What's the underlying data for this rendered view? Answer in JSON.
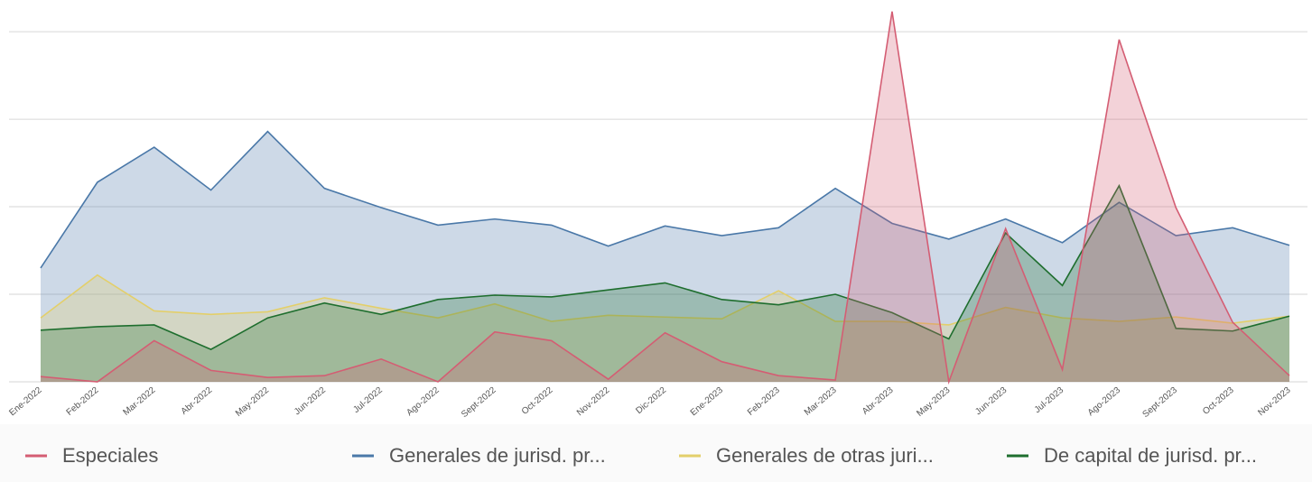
{
  "chart_data": {
    "type": "area",
    "categories": [
      "Ene-2022",
      "Feb-2022",
      "Mar-2022",
      "Abr-2022",
      "May-2022",
      "Jun-2022",
      "Jul-2022",
      "Ago-2022",
      "Sept-2022",
      "Oct-2022",
      "Nov-2022",
      "Dic-2022",
      "Ene-2023",
      "Feb-2023",
      "Mar-2023",
      "Abr-2023",
      "May-2023",
      "Jun-2023",
      "Jul-2023",
      "Ago-2023",
      "Sept-2023",
      "Oct-2023",
      "Nov-2023"
    ],
    "series": [
      {
        "name": "Especiales",
        "color": "#d45d73",
        "values": [
          0.06,
          0,
          0.47,
          0.13,
          0.05,
          0.07,
          0.26,
          0,
          0.57,
          0.47,
          0.03,
          0.56,
          0.23,
          0.07,
          0.02,
          4.23,
          0,
          1.75,
          0.14,
          3.91,
          1.99,
          0.68,
          0.07
        ]
      },
      {
        "name": "Generales de jurisd. pr...",
        "color": "#4a78a8",
        "values": [
          1.3,
          2.28,
          2.68,
          2.19,
          2.86,
          2.21,
          1.99,
          1.79,
          1.86,
          1.79,
          1.55,
          1.78,
          1.67,
          1.76,
          2.21,
          1.81,
          1.63,
          1.86,
          1.59,
          2.05,
          1.67,
          1.76,
          1.56
        ]
      },
      {
        "name": "Generales de otras juri...",
        "color": "#e3cf6a",
        "values": [
          0.73,
          1.22,
          0.81,
          0.77,
          0.8,
          0.96,
          0.84,
          0.73,
          0.89,
          0.69,
          0.76,
          0.74,
          0.72,
          1.04,
          0.69,
          0.69,
          0.65,
          0.85,
          0.73,
          0.69,
          0.74,
          0.67,
          0.75
        ]
      },
      {
        "name": "De capital de jurisd. pr...",
        "color": "#1e6e2e",
        "values": [
          0.59,
          0.63,
          0.65,
          0.37,
          0.73,
          0.9,
          0.77,
          0.94,
          0.99,
          0.97,
          1.05,
          1.13,
          0.94,
          0.88,
          1.0,
          0.79,
          0.49,
          1.7,
          1.1,
          2.24,
          0.61,
          0.58,
          0.75
        ]
      }
    ],
    "ylim": [
      0,
      4.3
    ],
    "yticks": [
      0,
      1,
      2,
      3,
      4
    ],
    "grid": true
  }
}
